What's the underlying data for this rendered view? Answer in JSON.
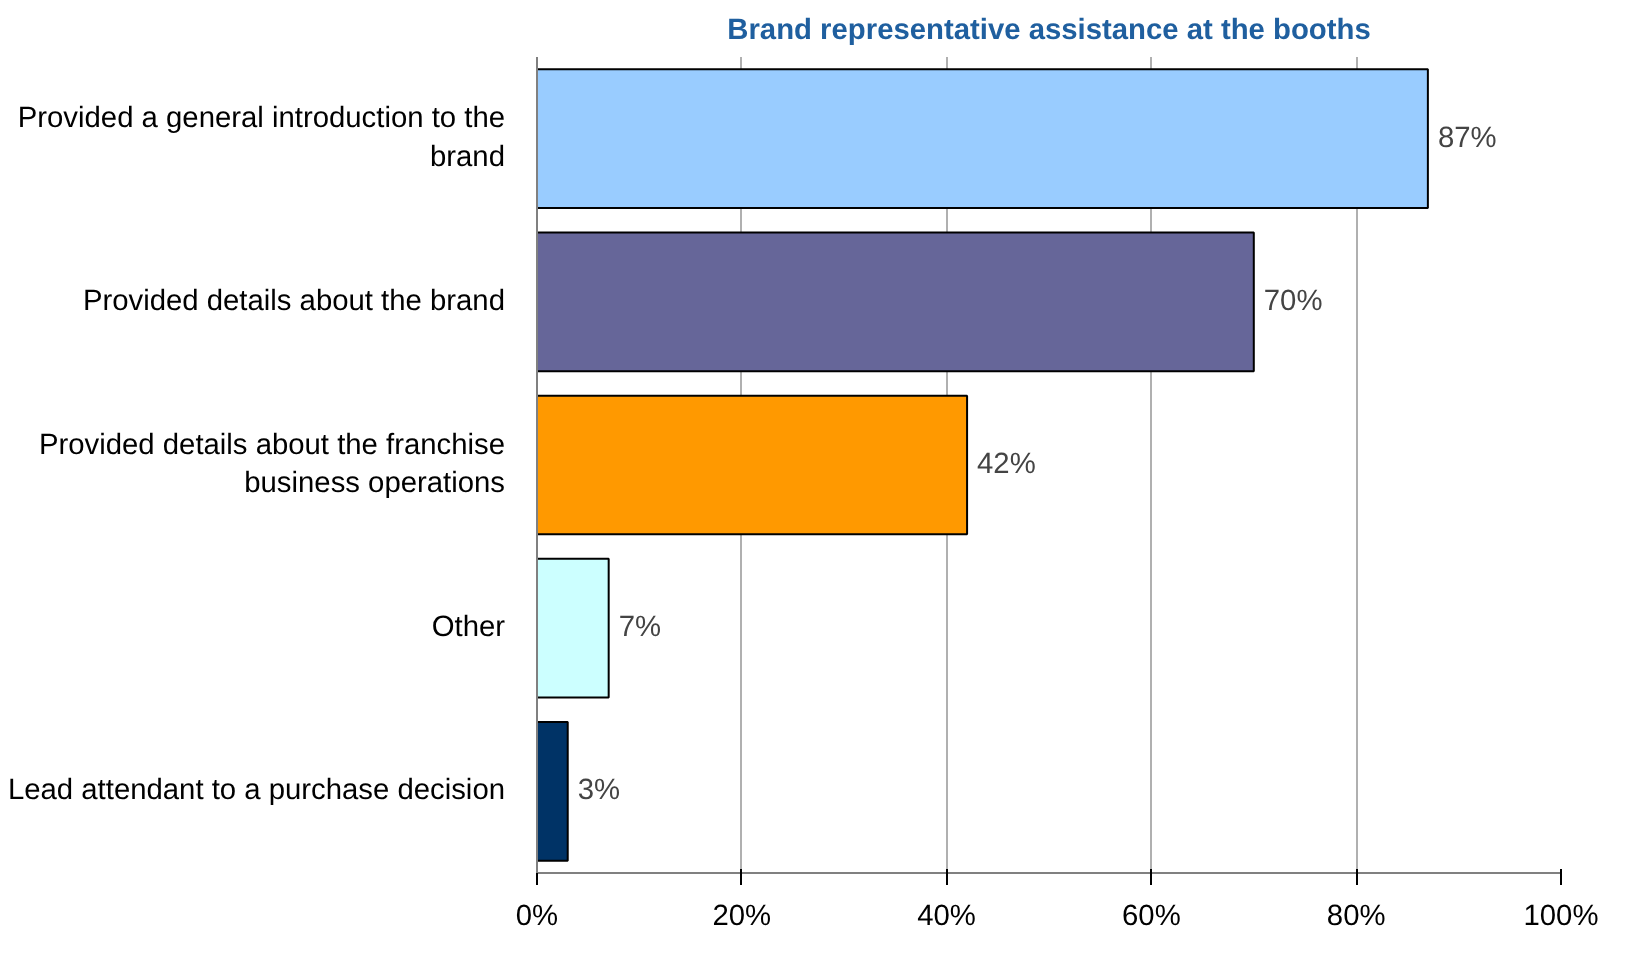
{
  "chart_data": {
    "type": "bar",
    "orientation": "horizontal",
    "title": "Brand representative assistance at the booths",
    "categories": [
      "Provided a general introduction to the brand",
      "Provided details about the brand",
      "Provided details about the franchise business operations",
      "Other",
      "Lead attendant to a purchase decision"
    ],
    "values": [
      87,
      70,
      42,
      7,
      3
    ],
    "colors": [
      "#99ccff",
      "#666699",
      "#ff9900",
      "#ccffff",
      "#003366"
    ],
    "value_labels": [
      "87%",
      "70%",
      "42%",
      "7%",
      "3%"
    ],
    "xlim": [
      0,
      100
    ],
    "xticks": [
      {
        "value": 0,
        "label": "0%"
      },
      {
        "value": 20,
        "label": "20%"
      },
      {
        "value": 40,
        "label": "40%"
      },
      {
        "value": 60,
        "label": "60%"
      },
      {
        "value": 80,
        "label": "80%"
      },
      {
        "value": 100,
        "label": "100%"
      }
    ],
    "grid": "x"
  }
}
